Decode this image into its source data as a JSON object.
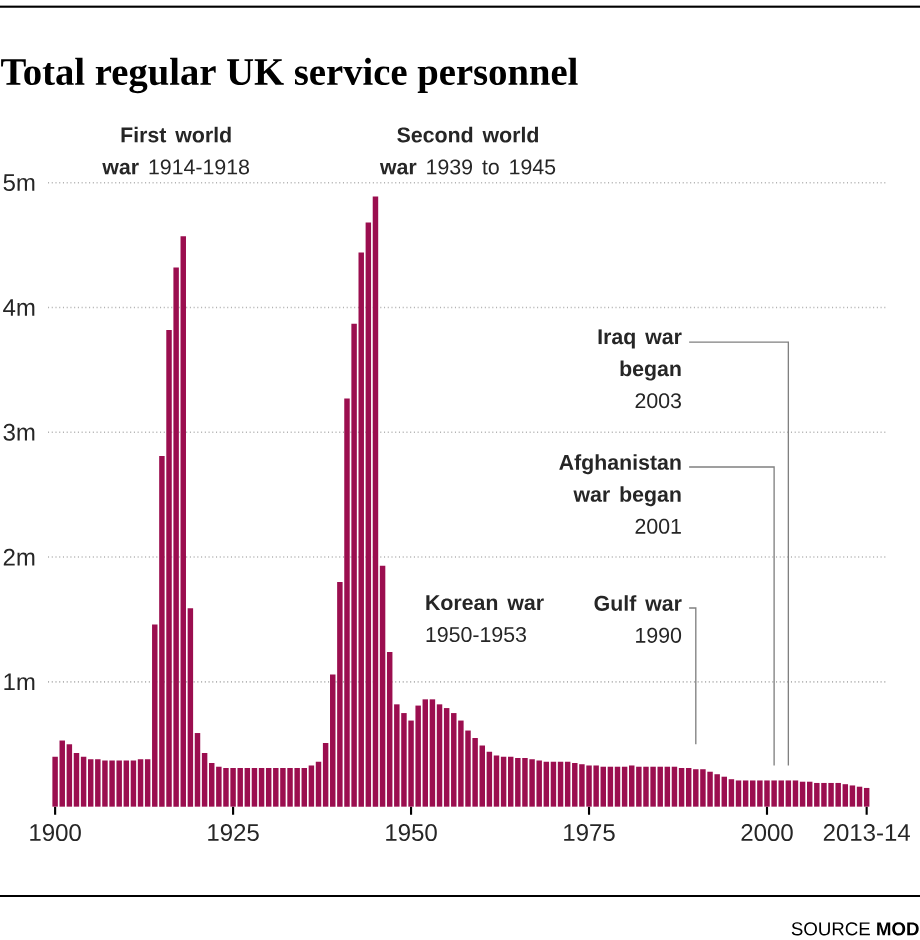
{
  "chart_data": {
    "type": "bar",
    "title": "Total regular UK service personnel",
    "x": [
      1900,
      1901,
      1902,
      1903,
      1904,
      1905,
      1906,
      1907,
      1908,
      1909,
      1910,
      1911,
      1912,
      1913,
      1914,
      1915,
      1916,
      1917,
      1918,
      1919,
      1920,
      1921,
      1922,
      1923,
      1924,
      1925,
      1926,
      1927,
      1928,
      1929,
      1930,
      1931,
      1932,
      1933,
      1934,
      1935,
      1936,
      1937,
      1938,
      1939,
      1940,
      1941,
      1942,
      1943,
      1944,
      1945,
      1946,
      1947,
      1948,
      1949,
      1950,
      1951,
      1952,
      1953,
      1954,
      1955,
      1956,
      1957,
      1958,
      1959,
      1960,
      1961,
      1962,
      1963,
      1964,
      1965,
      1966,
      1967,
      1968,
      1969,
      1970,
      1971,
      1972,
      1973,
      1974,
      1975,
      1976,
      1977,
      1978,
      1979,
      1980,
      1981,
      1982,
      1983,
      1984,
      1985,
      1986,
      1987,
      1988,
      1989,
      1990,
      1991,
      1992,
      1993,
      1994,
      1995,
      1996,
      1997,
      1998,
      1999,
      2000,
      2001,
      2002,
      2003,
      2004,
      2005,
      2006,
      2007,
      2008,
      2009,
      2010,
      2011,
      2012,
      2013,
      2014
    ],
    "values": [
      0.4,
      0.53,
      0.5,
      0.43,
      0.4,
      0.38,
      0.38,
      0.37,
      0.37,
      0.37,
      0.37,
      0.37,
      0.38,
      0.38,
      1.46,
      2.81,
      3.82,
      4.32,
      4.57,
      1.59,
      0.59,
      0.43,
      0.35,
      0.32,
      0.31,
      0.31,
      0.31,
      0.31,
      0.31,
      0.31,
      0.31,
      0.31,
      0.31,
      0.31,
      0.31,
      0.31,
      0.33,
      0.36,
      0.51,
      1.06,
      1.8,
      3.27,
      3.87,
      4.44,
      4.68,
      4.89,
      1.93,
      1.24,
      0.82,
      0.75,
      0.69,
      0.81,
      0.86,
      0.86,
      0.82,
      0.79,
      0.75,
      0.69,
      0.61,
      0.55,
      0.49,
      0.44,
      0.41,
      0.4,
      0.4,
      0.39,
      0.39,
      0.38,
      0.37,
      0.36,
      0.36,
      0.36,
      0.36,
      0.35,
      0.34,
      0.33,
      0.33,
      0.32,
      0.32,
      0.32,
      0.32,
      0.33,
      0.32,
      0.32,
      0.32,
      0.32,
      0.32,
      0.32,
      0.31,
      0.31,
      0.3,
      0.3,
      0.28,
      0.26,
      0.24,
      0.22,
      0.21,
      0.21,
      0.21,
      0.21,
      0.21,
      0.21,
      0.21,
      0.21,
      0.21,
      0.2,
      0.2,
      0.19,
      0.19,
      0.19,
      0.19,
      0.18,
      0.17,
      0.16,
      0.15
    ],
    "color": "#9b0e4f",
    "xlim": [
      1899,
      2017
    ],
    "xticks": [
      1900,
      1925,
      1950,
      1975,
      2000,
      {
        "value": 2014,
        "label": "2013-14"
      }
    ],
    "ylim": [
      0,
      5
    ],
    "yticks": [
      {
        "value": 1,
        "label": "1m"
      },
      {
        "value": 2,
        "label": "2m"
      },
      {
        "value": 3,
        "label": "3m"
      },
      {
        "value": 4,
        "label": "4m"
      },
      {
        "value": 5,
        "label": "5m"
      }
    ],
    "grid": "y",
    "annotations": [
      "**First world war** 1914-1918",
      "**Second world war** 1939 to 1945",
      "**Korean war** 1950-1953",
      "**Gulf war** 1990",
      "**Afghanistan war began** 2001",
      "**Iraq war began** 2003",
      "SOURCE **MOD**"
    ]
  }
}
